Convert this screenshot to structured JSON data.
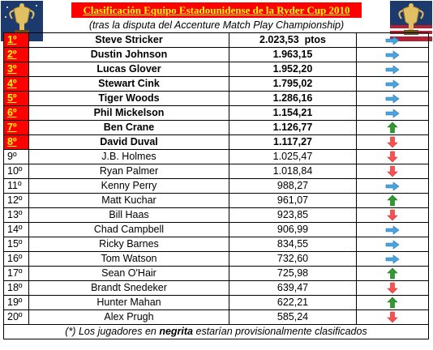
{
  "header": {
    "title": "Clasificación Equipo Estadounidense de la Ryder Cup 2010",
    "subtitle": "(tras la disputa del Accenture Match Play Championship)"
  },
  "colors": {
    "highlight_bg": "#ff0000",
    "highlight_fg": "#ffff00",
    "arrow_right": "#4aa3df",
    "arrow_up": "#2e9b2e",
    "arrow_down": "#ff5050"
  },
  "rows": [
    {
      "pos": "1º",
      "name": "Steve Stricker",
      "points": "2.023,53  ptos",
      "trend": "right-arrow-icon",
      "bold": true
    },
    {
      "pos": "2º",
      "name": "Dustin Johnson",
      "points": "1.963,15",
      "trend": "right-arrow-icon",
      "bold": true
    },
    {
      "pos": "3º",
      "name": "Lucas Glover",
      "points": "1.952,20",
      "trend": "right-arrow-icon",
      "bold": true
    },
    {
      "pos": "4º",
      "name": "Stewart Cink",
      "points": "1.795,02",
      "trend": "right-arrow-icon",
      "bold": true
    },
    {
      "pos": "5º",
      "name": "Tiger Woods",
      "points": "1.286,16",
      "trend": "right-arrow-icon",
      "bold": true
    },
    {
      "pos": "6º",
      "name": "Phil Mickelson",
      "points": "1.154,21",
      "trend": "right-arrow-icon",
      "bold": true
    },
    {
      "pos": "7º",
      "name": "Ben Crane",
      "points": "1.126,77",
      "trend": "up-arrow-icon",
      "bold": true
    },
    {
      "pos": "8º",
      "name": "David Duval",
      "points": "1.117,27",
      "trend": "down-arrow-icon",
      "bold": true
    },
    {
      "pos": "9º",
      "name": "J.B. Holmes",
      "points": "1.025,47",
      "trend": "down-arrow-icon",
      "bold": false
    },
    {
      "pos": "10º",
      "name": "Ryan Palmer",
      "points": "1.018,84",
      "trend": "down-arrow-icon",
      "bold": false
    },
    {
      "pos": "11º",
      "name": "Kenny Perry",
      "points": "988,27",
      "trend": "right-arrow-icon",
      "bold": false
    },
    {
      "pos": "12º",
      "name": "Matt Kuchar",
      "points": "961,07",
      "trend": "up-arrow-icon",
      "bold": false
    },
    {
      "pos": "13º",
      "name": "Bill Haas",
      "points": "923,85",
      "trend": "down-arrow-icon",
      "bold": false
    },
    {
      "pos": "14º",
      "name": "Chad Campbell",
      "points": "906,99",
      "trend": "right-arrow-icon",
      "bold": false
    },
    {
      "pos": "15º",
      "name": "Ricky Barnes",
      "points": "834,55",
      "trend": "right-arrow-icon",
      "bold": false
    },
    {
      "pos": "16º",
      "name": "Tom Watson",
      "points": "732,60",
      "trend": "right-arrow-icon",
      "bold": false
    },
    {
      "pos": "17º",
      "name": "Sean O'Hair",
      "points": "725,98",
      "trend": "up-arrow-icon",
      "bold": false
    },
    {
      "pos": "18º",
      "name": "Brandt Snedeker",
      "points": "639,47",
      "trend": "down-arrow-icon",
      "bold": false
    },
    {
      "pos": "19º",
      "name": "Hunter Mahan",
      "points": "622,21",
      "trend": "up-arrow-icon",
      "bold": false
    },
    {
      "pos": "20º",
      "name": "Alex Prugh",
      "points": "585,24",
      "trend": "down-arrow-icon",
      "bold": false
    }
  ],
  "footnote": {
    "before": "(*) Los jugadores en ",
    "bold": "negrita",
    "after": " estarían provisionalmente clasificados"
  }
}
